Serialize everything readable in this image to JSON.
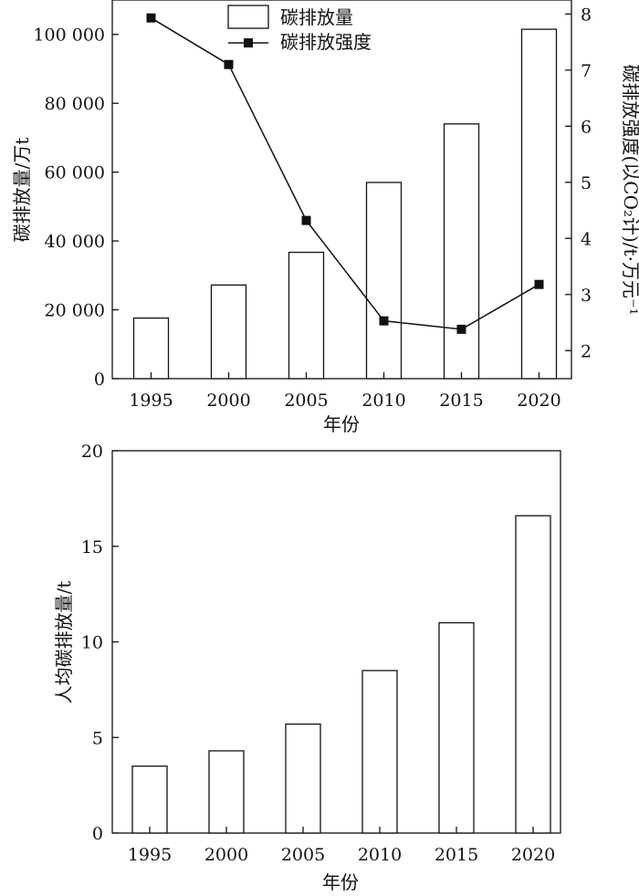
{
  "chart_data": [
    {
      "type": "bar+line",
      "xlabel": "年份",
      "categories": [
        "1995",
        "2000",
        "2005",
        "2010",
        "2015",
        "2020"
      ],
      "ylabel_left": "碳排放量/万t",
      "ylabel_right": "碳排放强度(以CO₂计)/t·万元⁻¹",
      "ylim_left": [
        0,
        110000
      ],
      "ylim_right": [
        1.5,
        8.25
      ],
      "yticks_left": [
        0,
        20000,
        40000,
        60000,
        80000,
        100000
      ],
      "yticks_left_labels": [
        "0",
        "20 000",
        "40 000",
        "60 000",
        "80 000",
        "100 000"
      ],
      "yticks_right": [
        2,
        3,
        4,
        5,
        6,
        7,
        8
      ],
      "yticks_right_labels": [
        "2",
        "3",
        "4",
        "5",
        "6",
        "7",
        "8"
      ],
      "legend_position": "top-center",
      "series": [
        {
          "name": "碳排放量",
          "type": "bar",
          "axis": "left",
          "values": [
            17600,
            27200,
            36700,
            57000,
            74000,
            101500
          ]
        },
        {
          "name": "碳排放强度",
          "type": "line",
          "axis": "right",
          "marker": "square",
          "values": [
            7.93,
            7.1,
            4.32,
            2.53,
            2.38,
            3.18
          ]
        }
      ],
      "grid": false
    },
    {
      "type": "bar",
      "xlabel": "年份",
      "ylabel": "人均碳排放量/t",
      "categories": [
        "1995",
        "2000",
        "2005",
        "2010",
        "2015",
        "2020"
      ],
      "values": [
        3.5,
        4.3,
        5.7,
        8.5,
        11.0,
        16.6
      ],
      "ylim": [
        0,
        20
      ],
      "yticks": [
        0,
        5,
        10,
        15,
        20
      ],
      "yticks_labels": [
        "0",
        "5",
        "10",
        "15",
        "20"
      ],
      "grid": false
    }
  ]
}
